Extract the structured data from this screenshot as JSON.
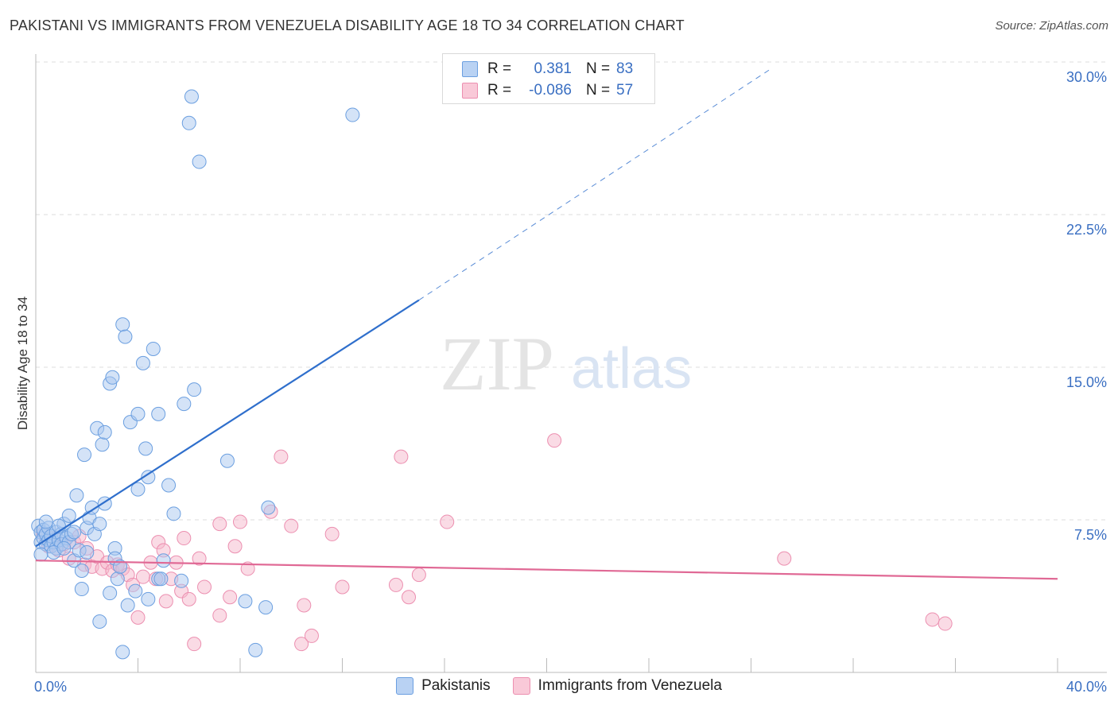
{
  "title": "PAKISTANI VS IMMIGRANTS FROM VENEZUELA DISABILITY AGE 18 TO 34 CORRELATION CHART",
  "source": "Source: ZipAtlas.com",
  "watermark": {
    "zip": "ZIP",
    "atlas": "atlas"
  },
  "legend": {
    "rows": [
      {
        "r_label": "R =",
        "r_value": "0.381",
        "n_label": "N =",
        "n_value": "83"
      },
      {
        "r_label": "R =",
        "r_value": "-0.086",
        "n_label": "N =",
        "n_value": "57"
      }
    ]
  },
  "bottom_legend": {
    "pakistanis": "Pakistanis",
    "venezuela": "Immigrants from Venezuela"
  },
  "colors": {
    "blue_fill": "#a9c7ef",
    "blue_stroke": "#6b9fe0",
    "blue_line": "#2f6fcc",
    "pink_fill": "#f5b8cb",
    "pink_stroke": "#ec8fb0",
    "pink_line": "#e06995",
    "tick_text": "#3a6fc2",
    "grid": "#dddddd"
  },
  "chart_data": {
    "type": "scatter",
    "title": "PAKISTANI VS IMMIGRANTS FROM VENEZUELA DISABILITY AGE 18 TO 34 CORRELATION CHART",
    "xlabel": "",
    "ylabel": "Disability Age 18 to 34",
    "xlim": [
      0,
      40
    ],
    "ylim": [
      0,
      30
    ],
    "x_tick_labels": [
      "0.0%",
      "40.0%"
    ],
    "y_ticks": [
      7.5,
      15.0,
      22.5,
      30.0
    ],
    "y_tick_labels": [
      "7.5%",
      "15.0%",
      "22.5%",
      "30.0%"
    ],
    "grid": true,
    "series": [
      {
        "name": "Pakistanis",
        "R": 0.381,
        "N": 83,
        "trend": {
          "x0": 0.0,
          "y0": 6.2,
          "x1": 15.0,
          "y1": 18.3,
          "x_dash_end": 28.7,
          "y_dash_end": 29.6
        },
        "points": [
          [
            0.1,
            7.2
          ],
          [
            0.2,
            6.9
          ],
          [
            0.2,
            6.4
          ],
          [
            0.3,
            6.6
          ],
          [
            0.3,
            7.0
          ],
          [
            0.4,
            6.3
          ],
          [
            0.4,
            6.8
          ],
          [
            0.5,
            6.5
          ],
          [
            0.5,
            7.1
          ],
          [
            0.6,
            6.2
          ],
          [
            0.6,
            6.7
          ],
          [
            0.7,
            6.4
          ],
          [
            0.8,
            6.9
          ],
          [
            0.8,
            6.1
          ],
          [
            0.9,
            6.5
          ],
          [
            1.0,
            6.8
          ],
          [
            1.0,
            6.3
          ],
          [
            1.1,
            7.3
          ],
          [
            1.2,
            6.6
          ],
          [
            1.3,
            6.4
          ],
          [
            1.3,
            7.7
          ],
          [
            1.4,
            6.8
          ],
          [
            1.5,
            5.5
          ],
          [
            1.6,
            8.7
          ],
          [
            1.7,
            6.0
          ],
          [
            1.8,
            5.0
          ],
          [
            1.8,
            4.1
          ],
          [
            1.9,
            10.7
          ],
          [
            2.0,
            7.1
          ],
          [
            2.1,
            7.6
          ],
          [
            2.2,
            8.1
          ],
          [
            2.3,
            6.8
          ],
          [
            2.4,
            12.0
          ],
          [
            2.5,
            2.5
          ],
          [
            2.5,
            7.3
          ],
          [
            2.6,
            11.2
          ],
          [
            2.7,
            11.8
          ],
          [
            2.7,
            8.3
          ],
          [
            2.9,
            3.9
          ],
          [
            2.9,
            14.2
          ],
          [
            3.0,
            14.5
          ],
          [
            3.1,
            6.1
          ],
          [
            3.1,
            5.6
          ],
          [
            3.2,
            4.6
          ],
          [
            3.3,
            5.2
          ],
          [
            3.4,
            17.1
          ],
          [
            3.4,
            1.0
          ],
          [
            3.5,
            16.5
          ],
          [
            3.6,
            3.3
          ],
          [
            3.7,
            12.3
          ],
          [
            3.9,
            4.0
          ],
          [
            4.0,
            12.7
          ],
          [
            4.0,
            9.0
          ],
          [
            4.2,
            15.2
          ],
          [
            4.3,
            11.0
          ],
          [
            4.4,
            3.6
          ],
          [
            4.4,
            9.6
          ],
          [
            4.6,
            15.9
          ],
          [
            4.8,
            4.6
          ],
          [
            4.8,
            12.7
          ],
          [
            4.9,
            4.6
          ],
          [
            5.0,
            5.5
          ],
          [
            5.2,
            9.2
          ],
          [
            5.4,
            7.8
          ],
          [
            5.7,
            4.5
          ],
          [
            5.8,
            13.2
          ],
          [
            6.0,
            27.0
          ],
          [
            6.1,
            28.3
          ],
          [
            6.2,
            13.9
          ],
          [
            6.4,
            25.1
          ],
          [
            7.5,
            10.4
          ],
          [
            8.2,
            3.5
          ],
          [
            8.6,
            1.1
          ],
          [
            9.1,
            8.1
          ],
          [
            9.0,
            3.2
          ],
          [
            12.4,
            27.4
          ],
          [
            0.9,
            7.2
          ],
          [
            1.5,
            6.9
          ],
          [
            2.0,
            5.9
          ],
          [
            0.4,
            7.4
          ],
          [
            0.7,
            5.9
          ],
          [
            1.1,
            6.1
          ],
          [
            0.2,
            5.8
          ]
        ]
      },
      {
        "name": "Immigrants from Venezuela",
        "R": -0.086,
        "N": 57,
        "trend": {
          "x0": 0.0,
          "y0": 5.5,
          "x1": 40.0,
          "y1": 4.6
        },
        "points": [
          [
            0.3,
            6.8
          ],
          [
            0.5,
            6.2
          ],
          [
            0.7,
            6.6
          ],
          [
            0.9,
            6.0
          ],
          [
            1.1,
            6.3
          ],
          [
            1.3,
            5.6
          ],
          [
            1.5,
            6.4
          ],
          [
            1.7,
            6.7
          ],
          [
            1.9,
            5.3
          ],
          [
            2.0,
            6.1
          ],
          [
            2.2,
            5.2
          ],
          [
            2.4,
            5.7
          ],
          [
            2.6,
            5.1
          ],
          [
            2.8,
            5.4
          ],
          [
            3.0,
            5.0
          ],
          [
            3.2,
            5.3
          ],
          [
            3.4,
            5.1
          ],
          [
            3.6,
            4.8
          ],
          [
            3.8,
            4.3
          ],
          [
            4.0,
            2.7
          ],
          [
            4.2,
            4.7
          ],
          [
            4.5,
            5.4
          ],
          [
            4.7,
            4.6
          ],
          [
            4.8,
            6.4
          ],
          [
            5.0,
            6.0
          ],
          [
            5.1,
            3.5
          ],
          [
            5.3,
            4.6
          ],
          [
            5.5,
            5.4
          ],
          [
            5.7,
            4.0
          ],
          [
            5.8,
            6.6
          ],
          [
            6.0,
            3.6
          ],
          [
            6.2,
            1.4
          ],
          [
            6.4,
            5.6
          ],
          [
            6.6,
            4.2
          ],
          [
            7.2,
            2.8
          ],
          [
            7.2,
            7.3
          ],
          [
            7.6,
            3.7
          ],
          [
            7.8,
            6.2
          ],
          [
            8.0,
            7.4
          ],
          [
            8.3,
            5.1
          ],
          [
            9.2,
            7.9
          ],
          [
            9.6,
            10.6
          ],
          [
            10.0,
            7.2
          ],
          [
            10.4,
            1.4
          ],
          [
            10.5,
            3.3
          ],
          [
            10.8,
            1.8
          ],
          [
            11.6,
            6.8
          ],
          [
            14.1,
            4.3
          ],
          [
            14.3,
            10.6
          ],
          [
            14.6,
            3.7
          ],
          [
            15.0,
            4.8
          ],
          [
            16.1,
            7.4
          ],
          [
            20.3,
            11.4
          ],
          [
            29.3,
            5.6
          ],
          [
            35.1,
            2.6
          ],
          [
            35.6,
            2.4
          ],
          [
            12.0,
            4.2
          ]
        ]
      }
    ]
  }
}
